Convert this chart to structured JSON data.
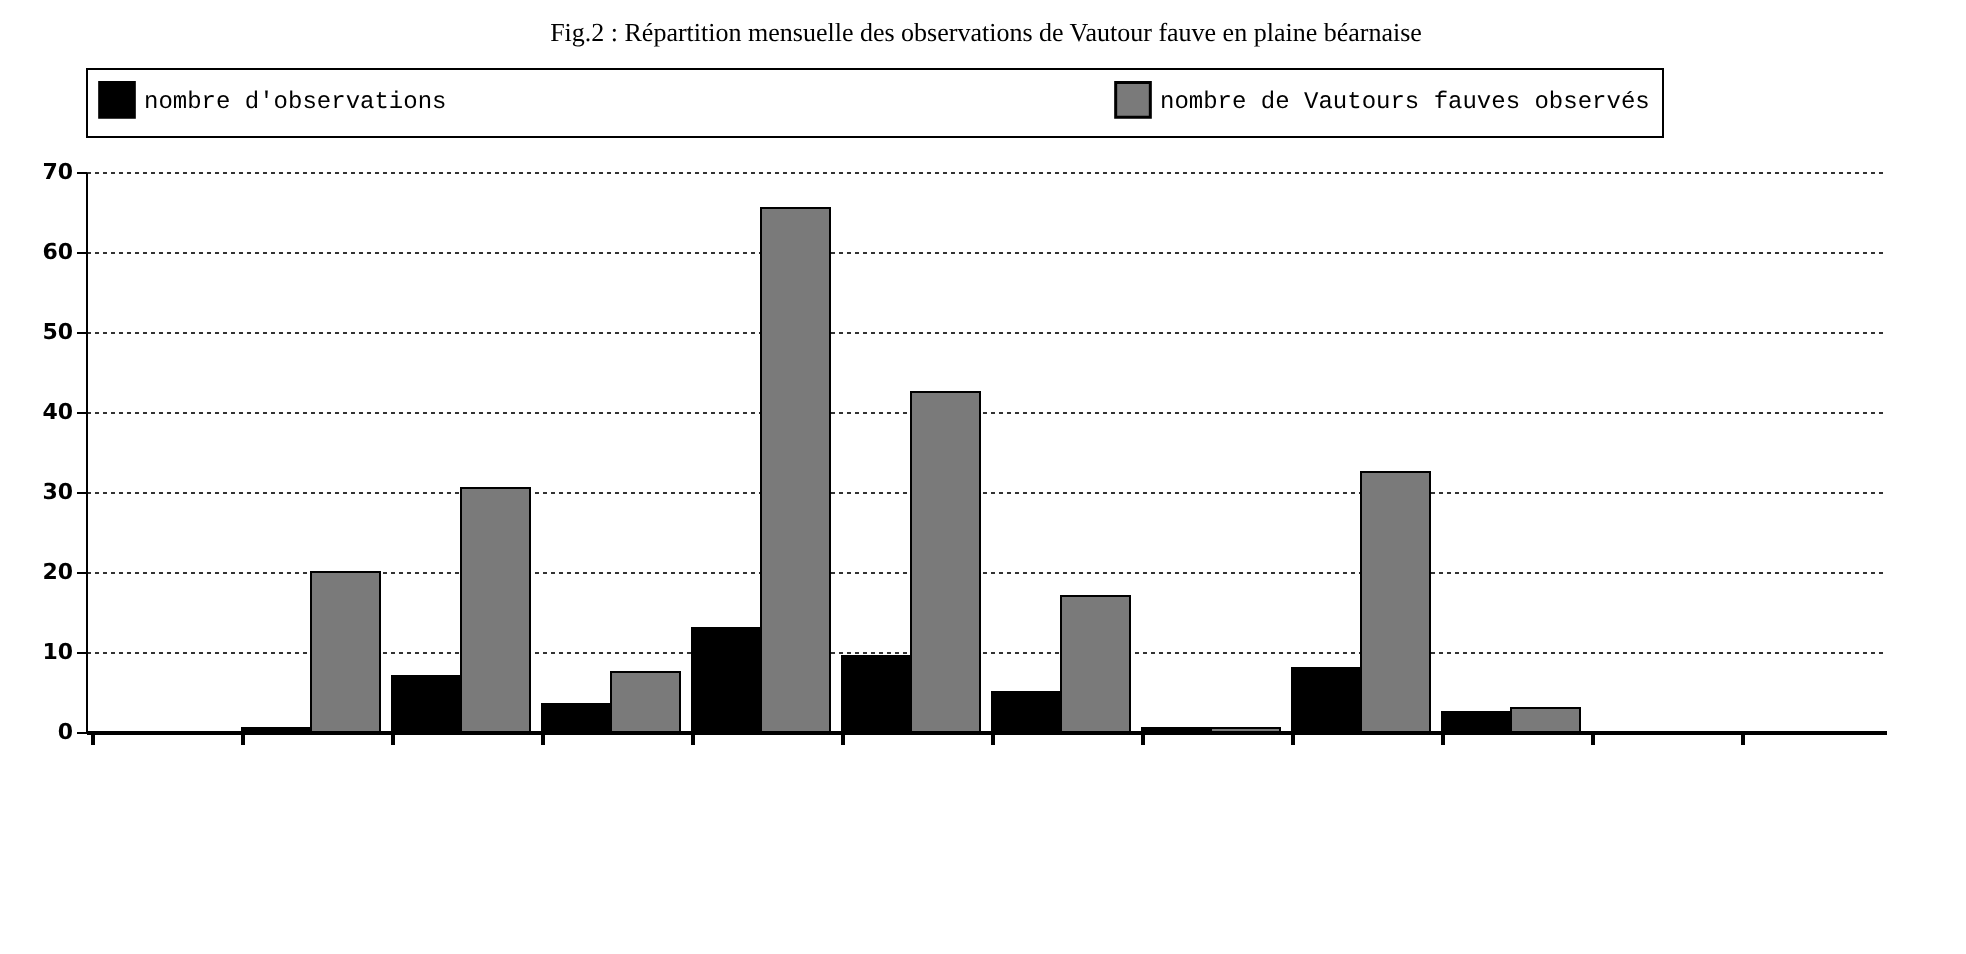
{
  "chart_data": {
    "type": "bar",
    "title": "Fig.2 : Répartition mensuelle des observations de Vautour fauve en plaine béarnaise",
    "categories": [
      null,
      null,
      null,
      null,
      null,
      null,
      null,
      null,
      null,
      null,
      null,
      null
    ],
    "series": [
      {
        "name": "nombre d'observations",
        "color": "#000000",
        "values": [
          0,
          0.5,
          7,
          3.5,
          13,
          9.5,
          5,
          0.5,
          8,
          2.5,
          0,
          0
        ]
      },
      {
        "name": "nombre de Vautours fauves observés",
        "color": "#7a7a7a",
        "values": [
          0,
          20,
          30.5,
          7.5,
          65.5,
          42.5,
          17,
          0.5,
          32.5,
          3,
          0,
          0
        ]
      }
    ],
    "ylim": [
      0,
      70
    ],
    "yticks": [
      0,
      10,
      20,
      30,
      40,
      50,
      60,
      70
    ],
    "grid": "y",
    "legend": "top"
  }
}
